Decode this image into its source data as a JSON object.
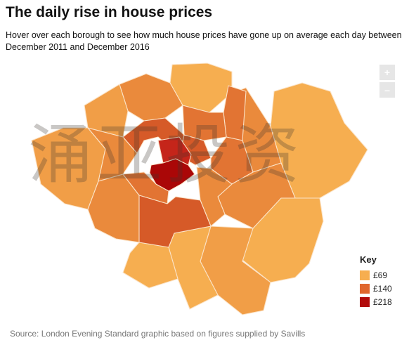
{
  "header": {
    "title": "The daily rise in house prices",
    "subtitle": "Hover over each borough to see how much house prices have gone up on average each day between December 2011 and December 2016"
  },
  "zoom": {
    "in_label": "+",
    "out_label": "–"
  },
  "legend": {
    "title": "Key",
    "items": [
      {
        "label": "£69",
        "color": "#f6ae50"
      },
      {
        "label": "£140",
        "color": "#e0672e"
      },
      {
        "label": "£218",
        "color": "#b20c0c"
      }
    ]
  },
  "map_colors": {
    "stroke": "#fbe3c7",
    "light": "#f6ae50",
    "light_mid": "#f19e47",
    "mid": "#ea8a3c",
    "mid_dark": "#e27433",
    "dark": "#d65a28",
    "red": "#c5251a",
    "deep_red": "#aa0707"
  },
  "watermark": {
    "text": "涌亚投资"
  },
  "source": "Source: London Evening Standard graphic based on figures supplied by Savills"
}
